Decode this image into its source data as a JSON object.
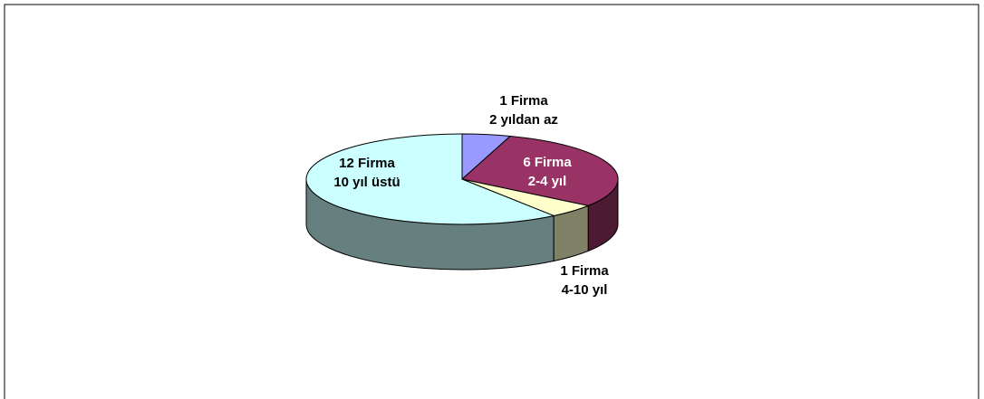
{
  "chart_data": {
    "type": "pie",
    "categories": [
      "2 yıldan az",
      "2-4 yıl",
      "4-10 yıl",
      "10 yıl üstü"
    ],
    "values": [
      1,
      6,
      1,
      12
    ],
    "value_labels": [
      "1 Firma",
      "6 Firma",
      "1 Firma",
      "12 Firma"
    ],
    "colors": [
      "#9999ff",
      "#993366",
      "#ffffcc",
      "#ccffff"
    ]
  }
}
